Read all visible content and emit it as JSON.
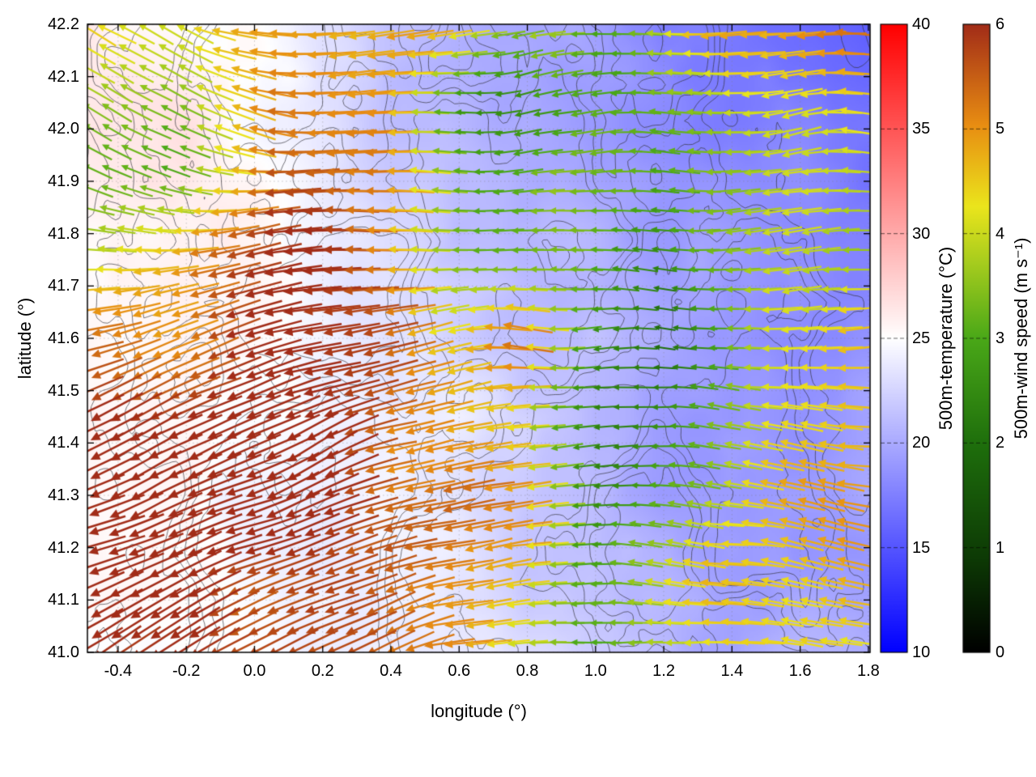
{
  "chart_data": {
    "type": "heatmap",
    "subtype": "temperature-field-with-wind-vectors-and-contours",
    "title": "",
    "xlabel": "longitude (°)",
    "ylabel": "latitude (°)",
    "xlim": [
      -0.49,
      1.805
    ],
    "ylim": [
      41.0,
      42.2
    ],
    "xtick_labels": [
      "-0.4",
      "-0.2",
      "0.0",
      "0.2",
      "0.4",
      "0.6",
      "0.8",
      "1.0",
      "1.2",
      "1.4",
      "1.6",
      "1.8"
    ],
    "ytick_labels": [
      "41.0",
      "41.1",
      "41.2",
      "41.3",
      "41.4",
      "41.5",
      "41.6",
      "41.7",
      "41.8",
      "41.9",
      "42.0",
      "42.1",
      "42.2"
    ],
    "grid": true,
    "contour_color": "#32323a",
    "colorbars": [
      {
        "id": "temperature",
        "label": "500m-temperature (°C)",
        "range": [
          10,
          40
        ],
        "tick_labels": [
          "10",
          "15",
          "20",
          "25",
          "30",
          "35",
          "40"
        ],
        "stops": [
          {
            "pos": 0.0,
            "color": "#0000ff"
          },
          {
            "pos": 0.5,
            "color": "#ffffff"
          },
          {
            "pos": 1.0,
            "color": "#ff0000"
          }
        ]
      },
      {
        "id": "wind-speed",
        "label": "500m-wind speed (m s⁻¹)",
        "range": [
          0,
          6
        ],
        "tick_labels": [
          "0",
          "1",
          "2",
          "3",
          "4",
          "5",
          "6"
        ],
        "stops": [
          {
            "pos": 0.0,
            "color": "#000000"
          },
          {
            "pos": 0.15,
            "color": "#0d3a05"
          },
          {
            "pos": 0.33,
            "color": "#1e6e0c"
          },
          {
            "pos": 0.5,
            "color": "#4aa818"
          },
          {
            "pos": 0.62,
            "color": "#a6cc1e"
          },
          {
            "pos": 0.71,
            "color": "#ebe51c"
          },
          {
            "pos": 0.84,
            "color": "#e88d12"
          },
          {
            "pos": 1.0,
            "color": "#a22c18"
          }
        ]
      }
    ],
    "temperature_field": {
      "units": "°C",
      "lon": [
        -0.5,
        -0.2,
        0.1,
        0.4,
        0.6,
        0.8,
        1.0,
        1.2,
        1.4,
        1.6,
        1.8
      ],
      "lat": [
        41.0,
        41.15,
        41.3,
        41.45,
        41.6,
        41.75,
        41.9,
        42.05,
        42.2
      ],
      "values": [
        [
          25.5,
          25.0,
          24.5,
          24.0,
          23.5,
          22.5,
          21.5,
          20.5,
          20.0,
          20.0,
          20.0
        ],
        [
          25.0,
          25.0,
          24.5,
          24.0,
          23.5,
          22.0,
          21.0,
          20.0,
          19.5,
          19.5,
          19.5
        ],
        [
          25.0,
          25.0,
          24.5,
          24.5,
          23.5,
          22.0,
          20.5,
          19.5,
          19.5,
          19.5,
          19.5
        ],
        [
          25.5,
          25.0,
          25.0,
          24.5,
          24.5,
          23.0,
          20.5,
          19.5,
          19.0,
          19.0,
          19.0
        ],
        [
          25.5,
          25.5,
          25.0,
          23.5,
          22.5,
          21.5,
          20.5,
          19.5,
          19.0,
          18.5,
          18.5
        ],
        [
          25.5,
          26.0,
          25.0,
          22.5,
          21.5,
          21.0,
          20.5,
          19.5,
          19.0,
          18.5,
          18.0
        ],
        [
          26.0,
          26.0,
          25.0,
          22.0,
          21.0,
          20.5,
          20.0,
          19.0,
          18.5,
          18.0,
          17.5
        ],
        [
          26.0,
          26.0,
          24.5,
          21.5,
          20.5,
          20.0,
          19.5,
          18.5,
          17.5,
          17.0,
          17.0
        ],
        [
          26.0,
          25.5,
          24.0,
          21.0,
          20.5,
          19.5,
          19.0,
          17.5,
          16.5,
          16.0,
          16.0
        ]
      ]
    },
    "wind_field": {
      "units": "m s⁻¹",
      "lon": [
        -0.5,
        -0.2,
        0.1,
        0.4,
        0.6,
        0.8,
        1.0,
        1.2,
        1.4,
        1.6,
        1.8
      ],
      "lat": [
        41.0,
        41.15,
        41.3,
        41.45,
        41.6,
        41.75,
        41.9,
        42.05,
        42.2
      ],
      "speed": [
        [
          6.0,
          6.0,
          6.0,
          5.8,
          5.2,
          4.0,
          3.0,
          3.8,
          4.2,
          4.0,
          4.2
        ],
        [
          6.0,
          6.0,
          6.0,
          5.8,
          5.5,
          4.5,
          2.5,
          3.5,
          4.5,
          4.2,
          4.5
        ],
        [
          6.0,
          6.0,
          6.0,
          5.8,
          5.5,
          5.0,
          2.5,
          3.0,
          4.0,
          4.5,
          4.8
        ],
        [
          6.0,
          6.0,
          6.0,
          5.5,
          4.5,
          4.0,
          2.2,
          2.5,
          3.5,
          4.0,
          4.2
        ],
        [
          5.5,
          5.0,
          6.0,
          5.5,
          4.0,
          5.0,
          2.5,
          2.2,
          3.0,
          3.8,
          4.5
        ],
        [
          4.0,
          4.5,
          5.8,
          5.5,
          3.8,
          3.0,
          3.2,
          2.5,
          3.0,
          3.5,
          4.0
        ],
        [
          3.5,
          3.0,
          5.5,
          5.2,
          3.5,
          3.0,
          3.5,
          3.2,
          3.5,
          3.8,
          4.2
        ],
        [
          4.0,
          3.5,
          5.5,
          4.8,
          3.0,
          2.5,
          3.0,
          3.5,
          4.0,
          4.2,
          4.5
        ],
        [
          4.5,
          4.0,
          5.0,
          4.5,
          5.0,
          3.5,
          3.0,
          4.0,
          4.5,
          5.0,
          5.2
        ]
      ],
      "direction_toward_deg": [
        [
          205,
          210,
          208,
          200,
          195,
          190,
          185,
          178,
          172,
          170,
          168
        ],
        [
          205,
          208,
          206,
          200,
          195,
          188,
          182,
          176,
          172,
          170,
          170
        ],
        [
          202,
          205,
          204,
          198,
          192,
          186,
          182,
          178,
          175,
          172,
          172
        ],
        [
          198,
          202,
          200,
          195,
          190,
          184,
          180,
          178,
          176,
          175,
          175
        ],
        [
          192,
          196,
          196,
          192,
          186,
          182,
          180,
          178,
          178,
          178,
          178
        ],
        [
          175,
          185,
          190,
          188,
          184,
          180,
          180,
          180,
          180,
          180,
          182
        ],
        [
          160,
          170,
          182,
          184,
          182,
          180,
          182,
          182,
          182,
          182,
          184
        ],
        [
          152,
          160,
          176,
          180,
          183,
          185,
          185,
          184,
          183,
          182,
          183
        ],
        [
          150,
          158,
          172,
          178,
          185,
          188,
          186,
          184,
          182,
          180,
          180
        ]
      ],
      "arrow_grid": {
        "n_lon": 40,
        "n_lat": 32
      }
    }
  }
}
